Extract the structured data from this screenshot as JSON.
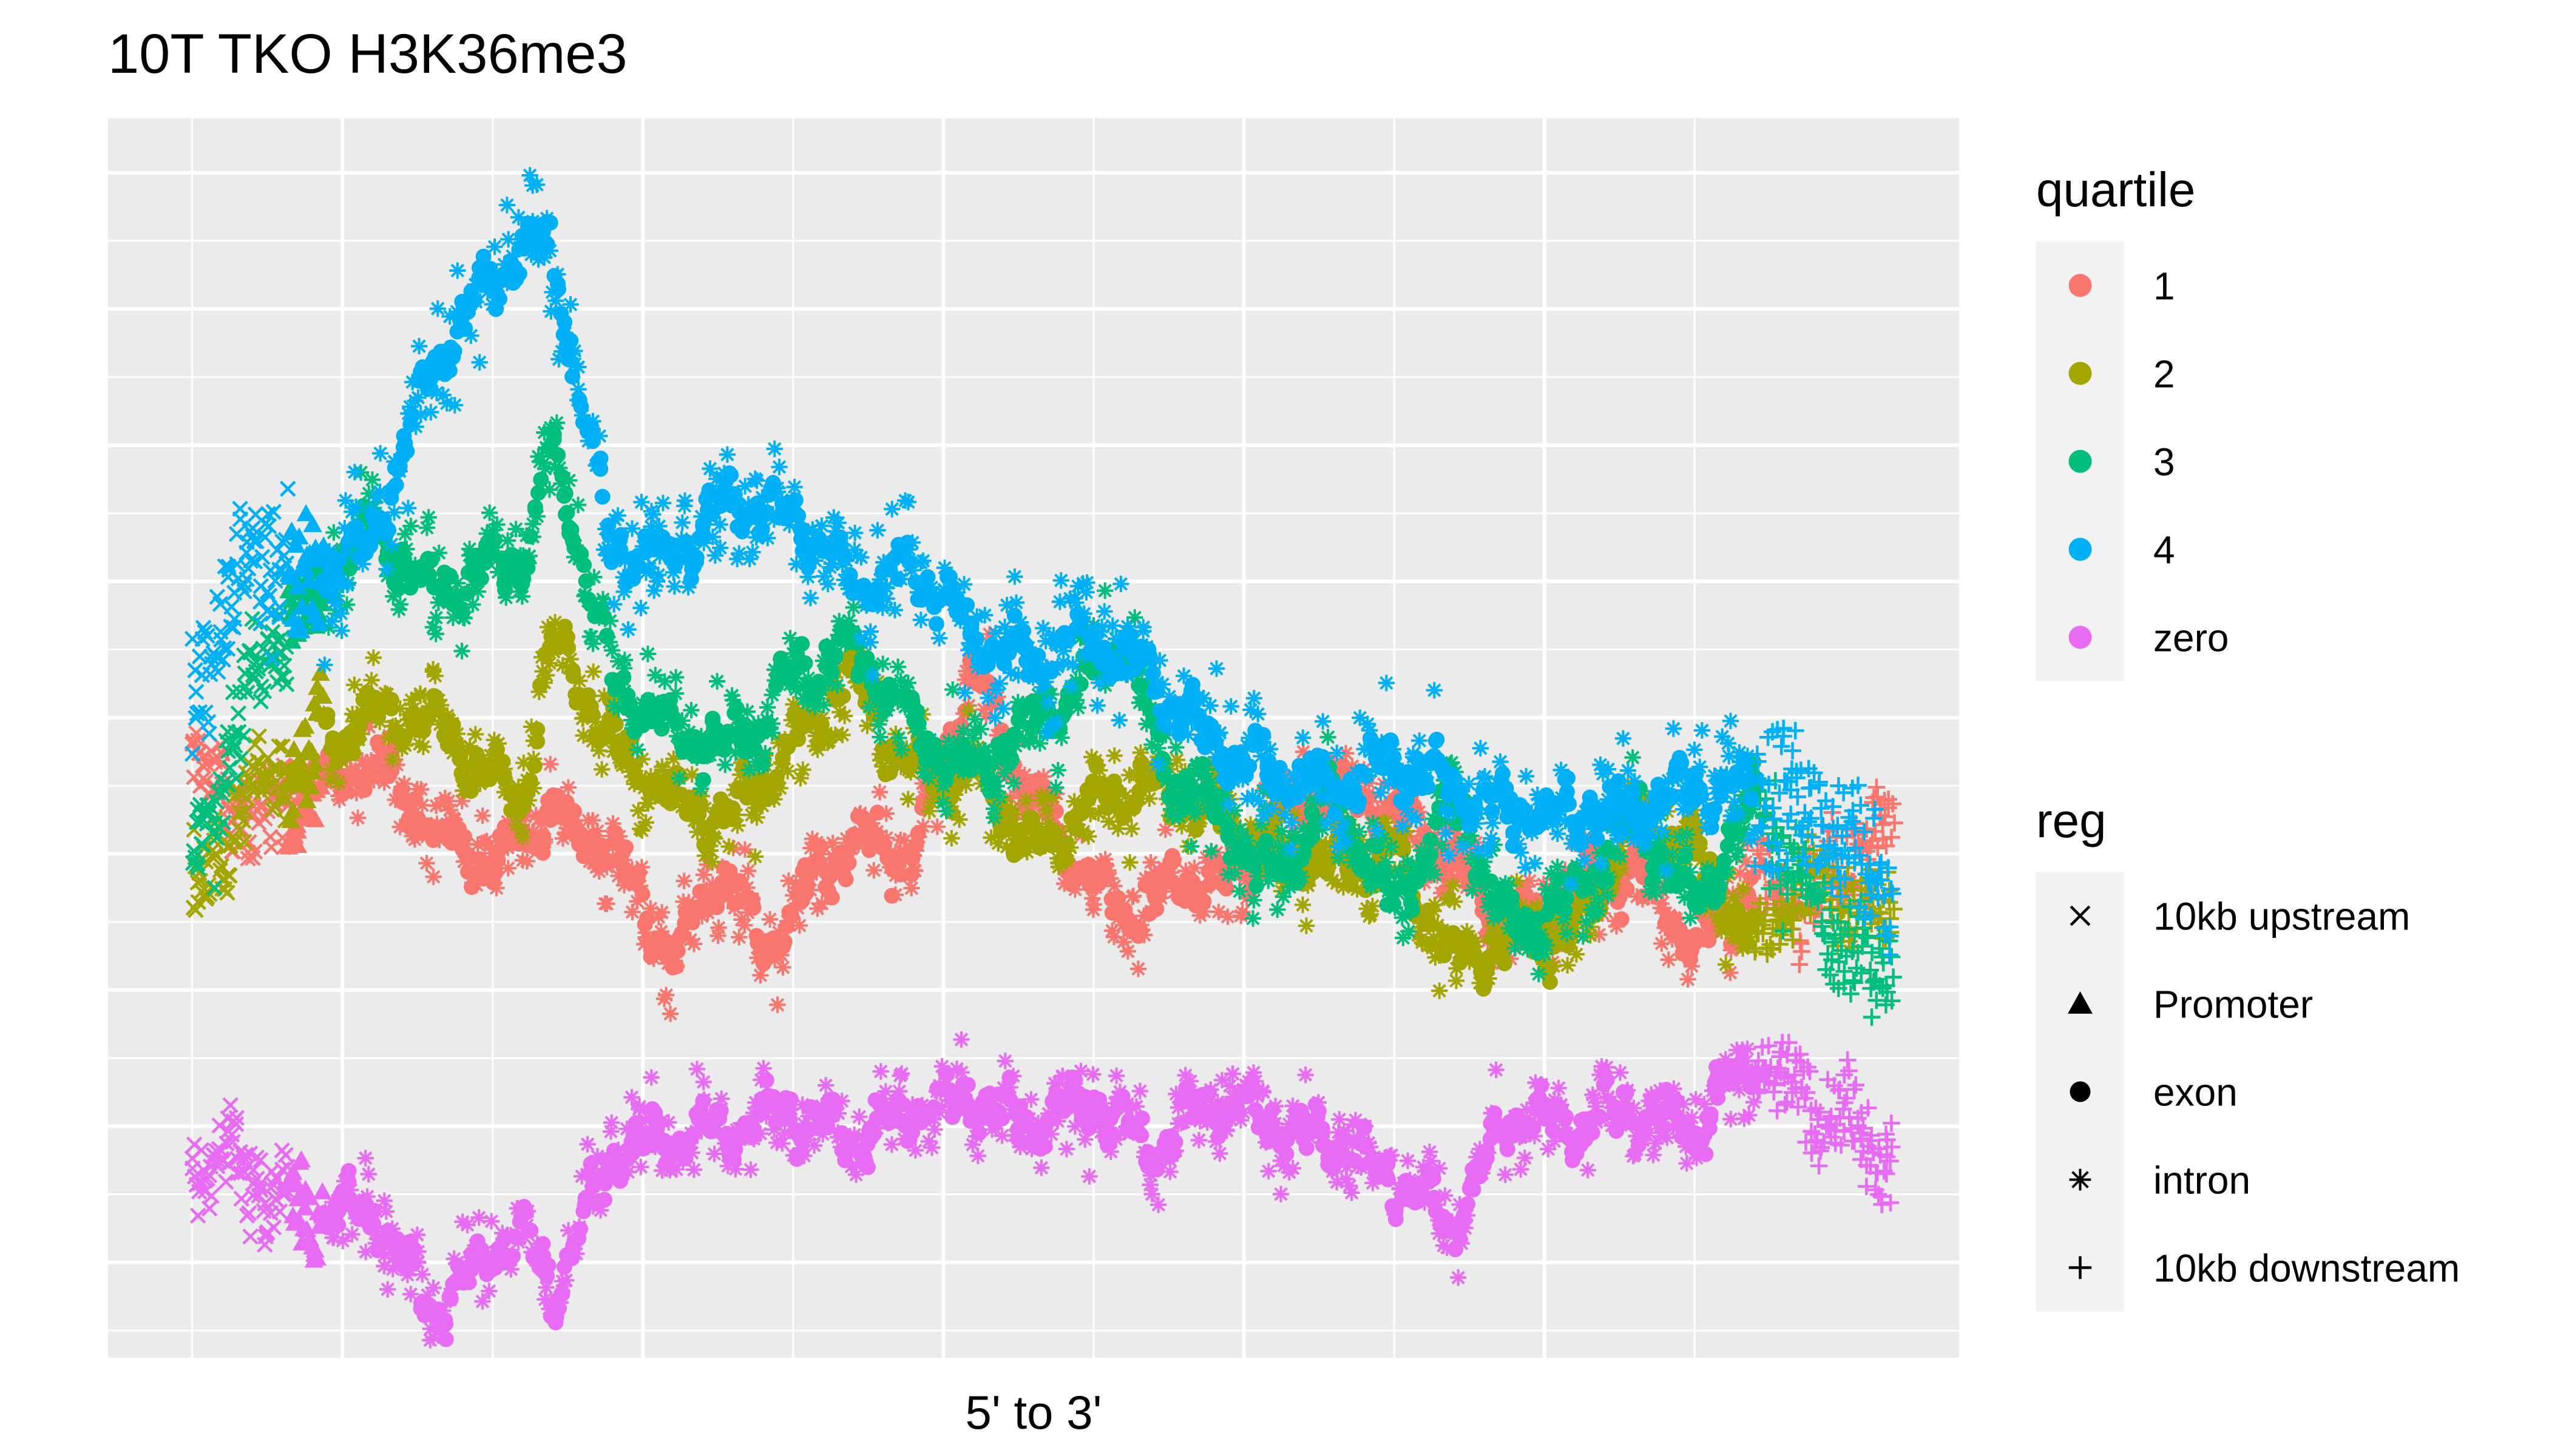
{
  "chart_data": {
    "type": "scatter",
    "title": "10T TKO H3K36me3",
    "xlabel": "5' to 3'",
    "ylabel": "",
    "grid": true,
    "legend_placement": "right",
    "legends": [
      {
        "title": "quartile",
        "kind": "color",
        "entries": [
          {
            "label": "1",
            "color": "#F8766D"
          },
          {
            "label": "2",
            "color": "#A3A500"
          },
          {
            "label": "3",
            "color": "#00BF7D"
          },
          {
            "label": "4",
            "color": "#00B0F6"
          },
          {
            "label": "zero",
            "color": "#E76BF3"
          }
        ]
      },
      {
        "title": "reg",
        "kind": "shape",
        "entries": [
          {
            "label": "10kb upstream",
            "shape": "x"
          },
          {
            "label": "Promoter",
            "shape": "triangle"
          },
          {
            "label": "exon",
            "shape": "circle"
          },
          {
            "label": "intron",
            "shape": "asterisk"
          },
          {
            "label": "10kb downstream",
            "shape": "plus"
          }
        ]
      }
    ],
    "xlim": [
      -1.4,
      29.4
    ],
    "ylim": [
      0.3,
      9.4
    ],
    "region_boundaries": [
      0,
      2,
      13,
      26,
      28.3
    ],
    "series": [
      {
        "name": "1",
        "color": "#F8766D",
        "anchors": [
          [
            0,
            4.6
          ],
          [
            1,
            4.2
          ],
          [
            2,
            4.5
          ],
          [
            3,
            4.7
          ],
          [
            4,
            4.2
          ],
          [
            5,
            3.9
          ],
          [
            6,
            4.3
          ],
          [
            7,
            4.0
          ],
          [
            8,
            3.2
          ],
          [
            8.8,
            3.9
          ],
          [
            9.5,
            3.3
          ],
          [
            10.5,
            3.9
          ],
          [
            11,
            4.1
          ],
          [
            12,
            4.0
          ],
          [
            13,
            5.4
          ],
          [
            13.7,
            4.6
          ],
          [
            14.3,
            4.2
          ],
          [
            15.5,
            3.5
          ],
          [
            16.5,
            3.8
          ],
          [
            17.5,
            3.8
          ],
          [
            18,
            4.3
          ],
          [
            19,
            4.5
          ],
          [
            20,
            4.3
          ],
          [
            21,
            3.9
          ],
          [
            22,
            3.4
          ],
          [
            23,
            3.7
          ],
          [
            24,
            3.9
          ],
          [
            25,
            3.3
          ],
          [
            26,
            3.8
          ],
          [
            27,
            3.6
          ],
          [
            28,
            4.2
          ],
          [
            28.3,
            4.2
          ]
        ],
        "noise": 0.3
      },
      {
        "name": "2",
        "color": "#A3A500",
        "anchors": [
          [
            0,
            3.7
          ],
          [
            1,
            4.4
          ],
          [
            2,
            4.8
          ],
          [
            3,
            5.0
          ],
          [
            4,
            5.0
          ],
          [
            5,
            4.5
          ],
          [
            5.5,
            4.4
          ],
          [
            6,
            5.6
          ],
          [
            7,
            4.8
          ],
          [
            8,
            4.4
          ],
          [
            9,
            4.3
          ],
          [
            10,
            4.8
          ],
          [
            11,
            5.3
          ],
          [
            12,
            4.6
          ],
          [
            13,
            4.6
          ],
          [
            14,
            4.0
          ],
          [
            15,
            4.4
          ],
          [
            16,
            4.5
          ],
          [
            17,
            4.3
          ],
          [
            18,
            4.0
          ],
          [
            19,
            3.9
          ],
          [
            20,
            4.0
          ],
          [
            21,
            3.2
          ],
          [
            22,
            3.4
          ],
          [
            23,
            3.4
          ],
          [
            24,
            4.3
          ],
          [
            25,
            4.0
          ],
          [
            26,
            3.3
          ],
          [
            27,
            3.8
          ],
          [
            28,
            3.6
          ],
          [
            28.3,
            3.4
          ]
        ],
        "noise": 0.3
      },
      {
        "name": "3",
        "color": "#00BF7D",
        "anchors": [
          [
            0,
            3.9
          ],
          [
            1,
            5.3
          ],
          [
            2,
            5.9
          ],
          [
            3,
            6.4
          ],
          [
            4,
            5.9
          ],
          [
            5,
            6.1
          ],
          [
            5.5,
            6.2
          ],
          [
            6,
            7.0
          ],
          [
            7,
            5.3
          ],
          [
            8,
            4.9
          ],
          [
            9,
            4.8
          ],
          [
            10,
            5.3
          ],
          [
            11,
            5.5
          ],
          [
            12,
            4.9
          ],
          [
            13,
            4.6
          ],
          [
            14,
            5.0
          ],
          [
            15,
            5.3
          ],
          [
            15.5,
            5.6
          ],
          [
            16,
            4.8
          ],
          [
            17,
            4.3
          ],
          [
            18,
            3.8
          ],
          [
            19,
            4.4
          ],
          [
            20,
            3.6
          ],
          [
            21,
            4.4
          ],
          [
            22,
            3.4
          ],
          [
            23,
            3.7
          ],
          [
            24,
            4.3
          ],
          [
            25,
            3.6
          ],
          [
            26,
            4.4
          ],
          [
            27,
            3.6
          ],
          [
            28,
            3.1
          ],
          [
            28.3,
            3.3
          ]
        ],
        "noise": 0.35
      },
      {
        "name": "4",
        "color": "#00B0F6",
        "anchors": [
          [
            0,
            5.2
          ],
          [
            1,
            6.2
          ],
          [
            2,
            6.0
          ],
          [
            3,
            6.3
          ],
          [
            4,
            7.6
          ],
          [
            5,
            8.2
          ],
          [
            5.5,
            8.5
          ],
          [
            6,
            8.4
          ],
          [
            7,
            6.2
          ],
          [
            8,
            6.2
          ],
          [
            9,
            6.6
          ],
          [
            10,
            6.5
          ],
          [
            11,
            6.0
          ],
          [
            12,
            6.1
          ],
          [
            13,
            5.6
          ],
          [
            14,
            5.4
          ],
          [
            15,
            5.6
          ],
          [
            16,
            5.3
          ],
          [
            17,
            4.8
          ],
          [
            18,
            4.6
          ],
          [
            19,
            4.5
          ],
          [
            20,
            4.7
          ],
          [
            21,
            4.5
          ],
          [
            22,
            4.3
          ],
          [
            23,
            4.3
          ],
          [
            24,
            4.3
          ],
          [
            25,
            4.5
          ],
          [
            26,
            4.4
          ],
          [
            27,
            4.3
          ],
          [
            28,
            3.9
          ],
          [
            28.3,
            3.7
          ]
        ],
        "noise": 0.45
      },
      {
        "name": "zero",
        "color": "#E76BF3",
        "anchors": [
          [
            0,
            1.8
          ],
          [
            1,
            1.6
          ],
          [
            2,
            1.3
          ],
          [
            3,
            1.4
          ],
          [
            4,
            0.6
          ],
          [
            5,
            1.1
          ],
          [
            5.5,
            1.2
          ],
          [
            6,
            0.8
          ],
          [
            7,
            1.8
          ],
          [
            8,
            1.9
          ],
          [
            9,
            2.0
          ],
          [
            10,
            2.1
          ],
          [
            11,
            1.9
          ],
          [
            12,
            2.1
          ],
          [
            13,
            2.2
          ],
          [
            14,
            2.0
          ],
          [
            15,
            2.2
          ],
          [
            16,
            1.8
          ],
          [
            17,
            2.2
          ],
          [
            18,
            2.0
          ],
          [
            19,
            1.9
          ],
          [
            20,
            1.6
          ],
          [
            21,
            1.3
          ],
          [
            22,
            2.1
          ],
          [
            23,
            2.0
          ],
          [
            24,
            2.1
          ],
          [
            25,
            2.0
          ],
          [
            26,
            2.5
          ],
          [
            27,
            2.2
          ],
          [
            28,
            1.8
          ],
          [
            28.3,
            1.7
          ]
        ],
        "noise": 0.3
      }
    ]
  }
}
